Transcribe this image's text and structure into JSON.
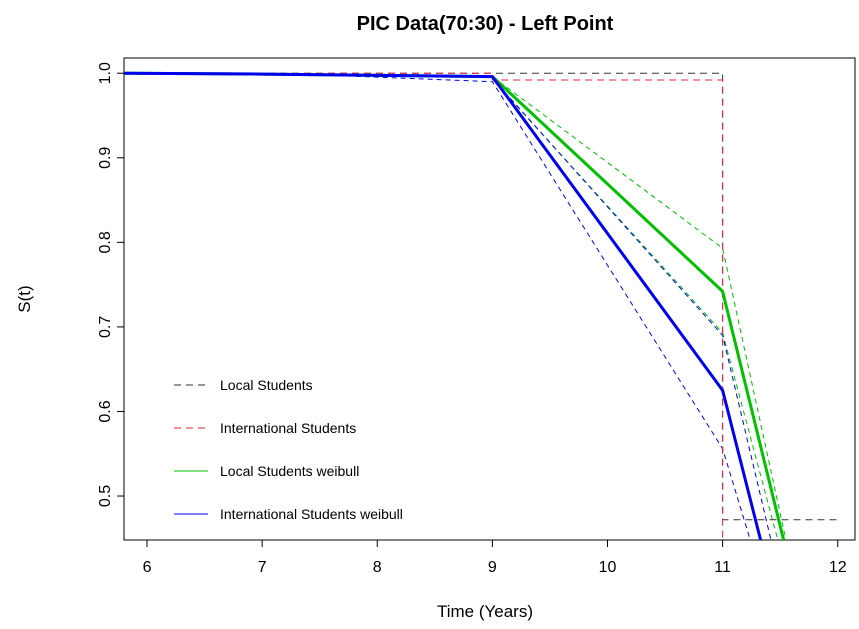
{
  "chart_data": {
    "type": "line",
    "title": "PIC Data(70:30) - Left Point",
    "xlabel": "Time (Years)",
    "ylabel": "S(t)",
    "xlim": [
      5.8,
      12.15
    ],
    "ylim": [
      0.448,
      1.018
    ],
    "xticks": [
      6,
      7,
      8,
      9,
      10,
      11,
      12
    ],
    "yticks": [
      0.5,
      0.6,
      0.7,
      0.8,
      0.9,
      1.0
    ],
    "ytick_labels": [
      "0.5",
      "0.6",
      "0.7",
      "0.8",
      "0.9",
      "1.0"
    ],
    "grid": false,
    "legend_position": "bottom-left",
    "series": [
      {
        "name": "Local Students",
        "color": "#333333",
        "style": "dashed",
        "width": 1,
        "x": [
          5.8,
          11.0,
          11.0,
          12.0
        ],
        "y": [
          1.0,
          1.0,
          0.472,
          0.472
        ]
      },
      {
        "name": "International Students",
        "color": "#e8203a",
        "style": "dashed",
        "width": 1,
        "x": [
          5.8,
          9.0,
          9.0,
          11.0,
          11.0
        ],
        "y": [
          1.0,
          1.0,
          0.992,
          0.992,
          0.448
        ]
      },
      {
        "name": "Local Students weibull",
        "color": "#00c000",
        "style": "solid",
        "width": 3,
        "x": [
          5.8,
          7.0,
          9.0,
          11.0,
          11.53
        ],
        "y": [
          1.0,
          0.999,
          0.996,
          0.742,
          0.448
        ]
      },
      {
        "name": "International Students weibull",
        "color": "#0000ee",
        "style": "solid",
        "width": 3,
        "x": [
          5.8,
          7.0,
          9.0,
          11.0,
          11.33
        ],
        "y": [
          1.0,
          0.999,
          0.996,
          0.625,
          0.448
        ]
      }
    ],
    "confidence_bands": [
      {
        "color": "#00c000",
        "x": [
          9.0,
          11.0,
          11.55
        ],
        "y": [
          0.996,
          0.793,
          0.448
        ]
      },
      {
        "color": "#00c000",
        "x": [
          9.0,
          11.0,
          11.48
        ],
        "y": [
          0.993,
          0.693,
          0.448
        ]
      },
      {
        "color": "#0000ee",
        "x": [
          9.0,
          11.0,
          11.42
        ],
        "y": [
          0.994,
          0.69,
          0.448
        ]
      },
      {
        "color": "#0000ee",
        "x": [
          7.5,
          9.0,
          11.0,
          11.24
        ],
        "y": [
          0.998,
          0.99,
          0.556,
          0.448
        ]
      }
    ]
  }
}
